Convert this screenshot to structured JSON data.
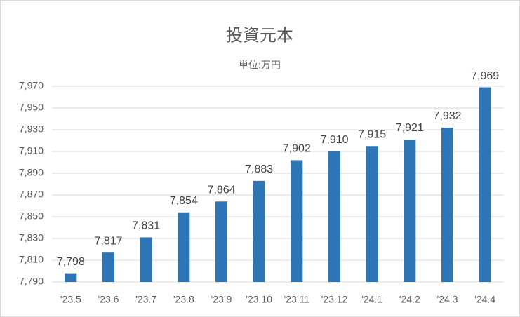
{
  "chart_data": {
    "type": "bar",
    "title": "投資元本",
    "subtitle": "単位:万円",
    "categories": [
      "'23.5",
      "'23.6",
      "'23.7",
      "'23.8",
      "'23.9",
      "'23.10",
      "'23.11",
      "'23.12",
      "'24.1",
      "'24.2",
      "'24.3",
      "'24.4"
    ],
    "values": [
      7798,
      7817,
      7831,
      7854,
      7864,
      7883,
      7902,
      7910,
      7915,
      7921,
      7932,
      7969
    ],
    "value_labels": [
      "7,798",
      "7,817",
      "7,831",
      "7,854",
      "7,864",
      "7,883",
      "7,902",
      "7,910",
      "7,915",
      "7,921",
      "7,932",
      "7,969"
    ],
    "color": "#2e75b6",
    "ylim": [
      7790,
      7970
    ],
    "yticks": [
      {
        "value": 7790,
        "label": "7,790"
      },
      {
        "value": 7810,
        "label": "7,810"
      },
      {
        "value": 7830,
        "label": "7,830"
      },
      {
        "value": 7850,
        "label": "7,850"
      },
      {
        "value": 7870,
        "label": "7,870"
      },
      {
        "value": 7890,
        "label": "7,890"
      },
      {
        "value": 7910,
        "label": "7,910"
      },
      {
        "value": 7930,
        "label": "7,930"
      },
      {
        "value": 7950,
        "label": "7,950"
      },
      {
        "value": 7970,
        "label": "7,970"
      }
    ],
    "grid": true
  }
}
